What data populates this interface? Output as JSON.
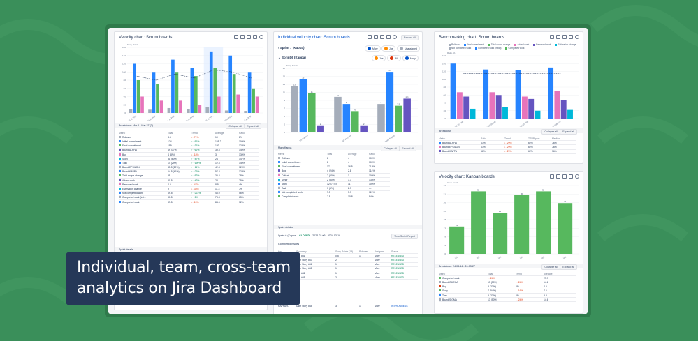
{
  "headline": {
    "line1": "Individual, team, cross-team",
    "line2": "analytics on Jira Dashboard"
  },
  "colors": {
    "background": "#3a8f5a",
    "card": "#253858",
    "blue": "#2684ff",
    "green": "#57b85e",
    "purple": "#6554c0",
    "pink": "#e774bb",
    "teal": "#00b8d9",
    "grey": "#a5adba"
  },
  "panel1": {
    "title": "Velocity chart: Scrum boards",
    "breakdown": "Breakdown: Mar 6 - Mar 27 (3)",
    "collapse": "Collapse all",
    "expand": "Expand all",
    "cols": [
      "Metric",
      "Total",
      "Trend",
      "Average",
      "Ratio"
    ],
    "rows": [
      [
        "Rollover",
        "4.5",
        "↓ -71%",
        "10",
        "8%"
      ],
      [
        "Initial commitment",
        "124",
        "↑ +51%",
        "105.2",
        "100%"
      ],
      [
        "Final commitment",
        "159",
        "↑ +31%",
        "140",
        "128%"
      ],
      [
        "Board ALPHA",
        "49 (37%)",
        "↑ +62%",
        "39.5",
        "140%"
      ],
      [
        "Bug",
        "4 (8%)",
        "↓ -18%",
        "3",
        "130%"
      ],
      [
        "Story",
        "31 (60%)",
        "↑ +47%",
        "24",
        "147%"
      ],
      [
        "Task",
        "14 (29%)",
        "↑ +190%",
        "12.5",
        "140%"
      ],
      [
        "Board EPSILON",
        "45.5 (29%)",
        "↑ +14%",
        "42.8",
        "125%"
      ],
      [
        "Board KAPPA",
        "64.5 (41%)",
        "↑ +26%",
        "57.8",
        "123%"
      ],
      [
        "Total scope change",
        "35",
        "↑ +52%",
        "30.8",
        "28%"
      ],
      [
        "Added work",
        "30.5",
        "↑ +42%",
        "28",
        "25%"
      ],
      [
        "Removed work",
        "4.5",
        "↓ -47%",
        "8.5",
        "4%"
      ],
      [
        "Estimation change",
        "9",
        "↓ -33%",
        "11.3",
        "7%"
      ],
      [
        "Not completed work",
        "69.5",
        "↑ +223%",
        "45.0",
        "56%"
      ],
      [
        "Completed work (init...",
        "80.5",
        "↑ +2%",
        "78.8",
        "65%"
      ],
      [
        "Completed work",
        "89.5",
        "↓ -15%",
        "84.5",
        "72%"
      ]
    ],
    "sprint_details": "Sprint details"
  },
  "panel2": {
    "title": "Individual velocity chart: Scrum boards",
    "expand_all": "Expand All",
    "sprint7": "Sprint 7 (Kappa)",
    "sprint6": "Sprint 6 (Kappa)",
    "users": [
      "Mary",
      "Joe",
      "Unassigned",
      "Joe",
      "Bill",
      "Mary"
    ],
    "chart_label": "Story Points",
    "xcats": [
      "Joe Gallion",
      "Bill Weckler",
      "Mary Kappa"
    ],
    "mary_header": "Mary Kappa",
    "collapse": "Collapse all",
    "expand": "Expand all",
    "cols": [
      "Metric",
      "Total",
      "Average",
      "Ratio"
    ],
    "rows": [
      [
        "Rollover",
        "8",
        "4",
        "100%"
      ],
      [
        "Initial commitment",
        "8",
        "4",
        "100%"
      ],
      [
        "Final commitment",
        "17",
        "16.5",
        "213%"
      ],
      [
        "Bug",
        "4 (24%)",
        "2.8",
        "114%"
      ],
      [
        "Critical",
        "2 (50%)",
        "1",
        "100%"
      ],
      [
        "Minor",
        "2 (50%)",
        "3.7",
        "133%"
      ],
      [
        "Story",
        "12 (71%)",
        "11",
        "100%"
      ],
      [
        "Task",
        "1 (6%)",
        "2.7",
        "—"
      ],
      [
        "Not completed work",
        "9.5",
        "5.7",
        "119%"
      ],
      [
        "Completed work",
        "7.5",
        "10.8",
        "94%"
      ]
    ],
    "sprint_details": "Sprint details",
    "sprint_line": "Sprint 6 (Kappa)",
    "sprint_status": "CLOSED",
    "sprint_dates": "2024-03-06  -  2024-03-19",
    "view_report": "View Sprint Report",
    "completed_issues": "Completed issues",
    "issue_cols": [
      "Key",
      "Summary",
      "Story Points (13)",
      "Rollover",
      "Assignee",
      "Status"
    ],
    "issues": [
      [
        "KAPPA-126",
        "Bug #31",
        "0.5",
        "1",
        "Mary",
        "RELEASED"
      ],
      [
        "KAPPA-127",
        "User Story #63",
        "2",
        "",
        "Mary",
        "RELEASED"
      ],
      [
        "KAPPA-128",
        "User Story #56",
        "1",
        "",
        "Mary",
        "RELEASED"
      ],
      [
        "KAPPA-129",
        "User Story #58",
        "1",
        "",
        "Mary",
        "RELEASED"
      ],
      [
        "KAPPA-130",
        "Bug #32",
        "1",
        "",
        "Mary",
        "RELEASED"
      ],
      [
        "KAPPA-131",
        "Bug #35",
        "2",
        "",
        "Mary",
        "RELEASED"
      ]
    ],
    "not_completed": "Not completed",
    "issues2": [
      [
        "KAPPA-97",
        "User Story #45",
        "3",
        "1",
        "Mary",
        "IN PROGRESS"
      ]
    ]
  },
  "panel3": {
    "title": "Benchmarking chart: Scrum boards",
    "legend": [
      "Rollover",
      "Final commitment",
      "Total scope change",
      "Added work",
      "Removed work",
      "Estimation change",
      "Not completed work",
      "Completed work (initial)",
      "Completed work"
    ],
    "ylabel": "Ratio, %",
    "breakdown": "Breakdown",
    "collapse": "Collapse all",
    "expand": "Expand all",
    "cols": [
      "Metric",
      "Ratio",
      "Trend",
      "TSVR pers.",
      "Median"
    ],
    "rows": [
      [
        "Board ALPHA",
        "67%",
        "↓ -29%",
        "62%",
        "76%"
      ],
      [
        "Board EPSILON",
        "67%",
        "↓ -29%",
        "62%",
        "76%"
      ],
      [
        "Board KAPPA",
        "56%",
        "↓ -29%",
        "62%",
        "76%"
      ]
    ]
  },
  "panel4": {
    "title": "Velocity chart: Kanban boards",
    "ylabel": "Issue count",
    "breakdown": "Breakdown: 24-03-14 - 24-03-27",
    "collapse": "Collapse all",
    "expand": "Expand all",
    "cols": [
      "Metric",
      "Total",
      "Trend",
      "Average"
    ],
    "rows": [
      [
        "Completed work",
        "↓ -24%",
        "",
        "29.7"
      ],
      [
        "Board OMEGA",
        "13 (50%)",
        "↓ -24%",
        "14.6"
      ],
      [
        "Bug",
        "3 (23%)",
        "0%",
        "4.0"
      ],
      [
        "Story",
        "7 (54%)",
        "↓ -16%",
        "7.6"
      ],
      [
        "Task",
        "3 (23%)",
        "0%",
        "3.3"
      ],
      [
        "Board SIGMA",
        "13 (50%)",
        "↓ -24%",
        "14.6"
      ]
    ]
  },
  "chart_data": [
    {
      "type": "bar",
      "title": "Velocity chart: Scrum boards",
      "ylabel": "Story Points",
      "categories": [
        "Jan 10 ALPHA",
        "Jan 24 ALPHA",
        "Feb 7 ALPHA",
        "Feb 21 ALPHA",
        "Mar 6 ALPHA",
        "Mar 20 ALPHA",
        "Apr 3 ALPHA"
      ],
      "series": [
        {
          "name": "Rollover",
          "values": [
            10,
            8,
            12,
            9,
            14,
            6,
            5
          ]
        },
        {
          "name": "Final commitment",
          "values": [
            120,
            100,
            130,
            110,
            150,
            140,
            100
          ]
        },
        {
          "name": "Completed work",
          "values": [
            80,
            70,
            100,
            90,
            110,
            95,
            60
          ]
        },
        {
          "name": "Not completed work",
          "values": [
            40,
            30,
            30,
            20,
            40,
            45,
            40
          ]
        }
      ],
      "ylim": [
        0,
        160
      ]
    },
    {
      "type": "bar",
      "title": "Individual velocity chart: Scrum boards",
      "ylabel": "Story Points",
      "categories": [
        "Joe Gallion",
        "Bill Weckler",
        "Mary Kappa"
      ],
      "series": [
        {
          "name": "Initial commitment",
          "values": [
            13,
            10,
            8
          ]
        },
        {
          "name": "Final commitment",
          "values": [
            15,
            8,
            17
          ]
        },
        {
          "name": "Completed work",
          "values": [
            11,
            6,
            7.5
          ]
        },
        {
          "name": "Not completed work",
          "values": [
            2,
            2,
            9.5
          ]
        }
      ],
      "ylim": [
        0,
        18
      ]
    },
    {
      "type": "bar",
      "title": "Benchmarking chart: Scrum boards",
      "ylabel": "Ratio, %",
      "categories": [
        "Board ALPHA",
        "Board EPSILON",
        "Board KAPPA",
        "Board OMEGA"
      ],
      "series": [
        {
          "name": "Final commitment",
          "values": [
            140,
            125,
            123,
            130
          ]
        },
        {
          "name": "Completed work",
          "values": [
            67,
            67,
            56,
            70
          ]
        },
        {
          "name": "Not completed work",
          "values": [
            56,
            60,
            50,
            48
          ]
        },
        {
          "name": "Added work",
          "values": [
            25,
            30,
            20,
            22
          ]
        }
      ],
      "ylim": [
        0,
        160
      ]
    },
    {
      "type": "bar",
      "title": "Velocity chart: Kanban boards",
      "ylabel": "Issue count",
      "categories": [
        "W1",
        "W2",
        "W3",
        "W4",
        "W5",
        "W6"
      ],
      "values": [
        14,
        32,
        21,
        30,
        32,
        26
      ],
      "ylim": [
        0,
        35
      ]
    }
  ]
}
